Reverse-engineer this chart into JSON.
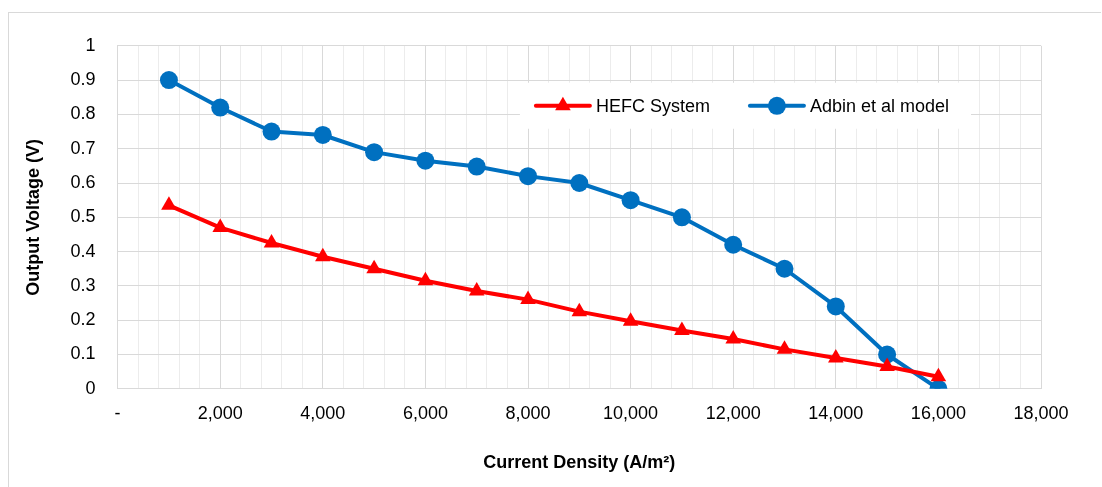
{
  "chart_data": {
    "type": "line",
    "xlabel": "Current Density (A/m²)",
    "ylabel": "Output Voltage (V)",
    "x": [
      1000,
      2000,
      3000,
      4000,
      5000,
      6000,
      7000,
      8000,
      9000,
      10000,
      11000,
      12000,
      13000,
      14000,
      15000,
      16000
    ],
    "series": [
      {
        "name": "HEFC System",
        "color": "#ff0000",
        "marker": "triangle",
        "values": [
          0.535,
          0.47,
          0.425,
          0.385,
          0.35,
          0.315,
          0.285,
          0.26,
          0.225,
          0.197,
          0.17,
          0.145,
          0.115,
          0.09,
          0.065,
          0.035
        ]
      },
      {
        "name": "Adbin et al model",
        "color": "#0070c0",
        "marker": "circle",
        "values": [
          0.9,
          0.82,
          0.75,
          0.74,
          0.69,
          0.665,
          0.648,
          0.62,
          0.6,
          0.55,
          0.5,
          0.42,
          0.35,
          0.24,
          0.1,
          0.0
        ]
      }
    ],
    "xlim": [
      0,
      18000
    ],
    "xticks": [
      {
        "value": 0,
        "label": "-"
      },
      {
        "value": 400,
        "label": null
      },
      {
        "value": 800,
        "label": null
      },
      {
        "value": 1200,
        "label": null
      },
      {
        "value": 1600,
        "label": null
      },
      {
        "value": 2000,
        "label": "2,000"
      },
      {
        "value": 2400,
        "label": null
      },
      {
        "value": 2800,
        "label": null
      },
      {
        "value": 3200,
        "label": null
      },
      {
        "value": 3600,
        "label": null
      },
      {
        "value": 4000,
        "label": "4,000"
      },
      {
        "value": 4400,
        "label": null
      },
      {
        "value": 4800,
        "label": null
      },
      {
        "value": 5200,
        "label": null
      },
      {
        "value": 5600,
        "label": null
      },
      {
        "value": 6000,
        "label": "6,000"
      },
      {
        "value": 6400,
        "label": null
      },
      {
        "value": 6800,
        "label": null
      },
      {
        "value": 7200,
        "label": null
      },
      {
        "value": 7600,
        "label": null
      },
      {
        "value": 8000,
        "label": "8,000"
      },
      {
        "value": 8400,
        "label": null
      },
      {
        "value": 8800,
        "label": null
      },
      {
        "value": 9200,
        "label": null
      },
      {
        "value": 9600,
        "label": null
      },
      {
        "value": 10000,
        "label": "10,000"
      },
      {
        "value": 10400,
        "label": null
      },
      {
        "value": 10800,
        "label": null
      },
      {
        "value": 11200,
        "label": null
      },
      {
        "value": 11600,
        "label": null
      },
      {
        "value": 12000,
        "label": "12,000"
      },
      {
        "value": 12400,
        "label": null
      },
      {
        "value": 12800,
        "label": null
      },
      {
        "value": 13200,
        "label": null
      },
      {
        "value": 13600,
        "label": null
      },
      {
        "value": 14000,
        "label": "14,000"
      },
      {
        "value": 14400,
        "label": null
      },
      {
        "value": 14800,
        "label": null
      },
      {
        "value": 15200,
        "label": null
      },
      {
        "value": 15600,
        "label": null
      },
      {
        "value": 16000,
        "label": "16,000"
      },
      {
        "value": 16400,
        "label": null
      },
      {
        "value": 16800,
        "label": null
      },
      {
        "value": 17200,
        "label": null
      },
      {
        "value": 17600,
        "label": null
      },
      {
        "value": 18000,
        "label": "18,000"
      }
    ],
    "ylim": [
      0,
      1
    ],
    "yticks": [
      0,
      0.1,
      0.2,
      0.3,
      0.4,
      0.5,
      0.6,
      0.7,
      0.8,
      0.9,
      1
    ],
    "grid": true,
    "legend": "top right",
    "line_style": "solid"
  }
}
